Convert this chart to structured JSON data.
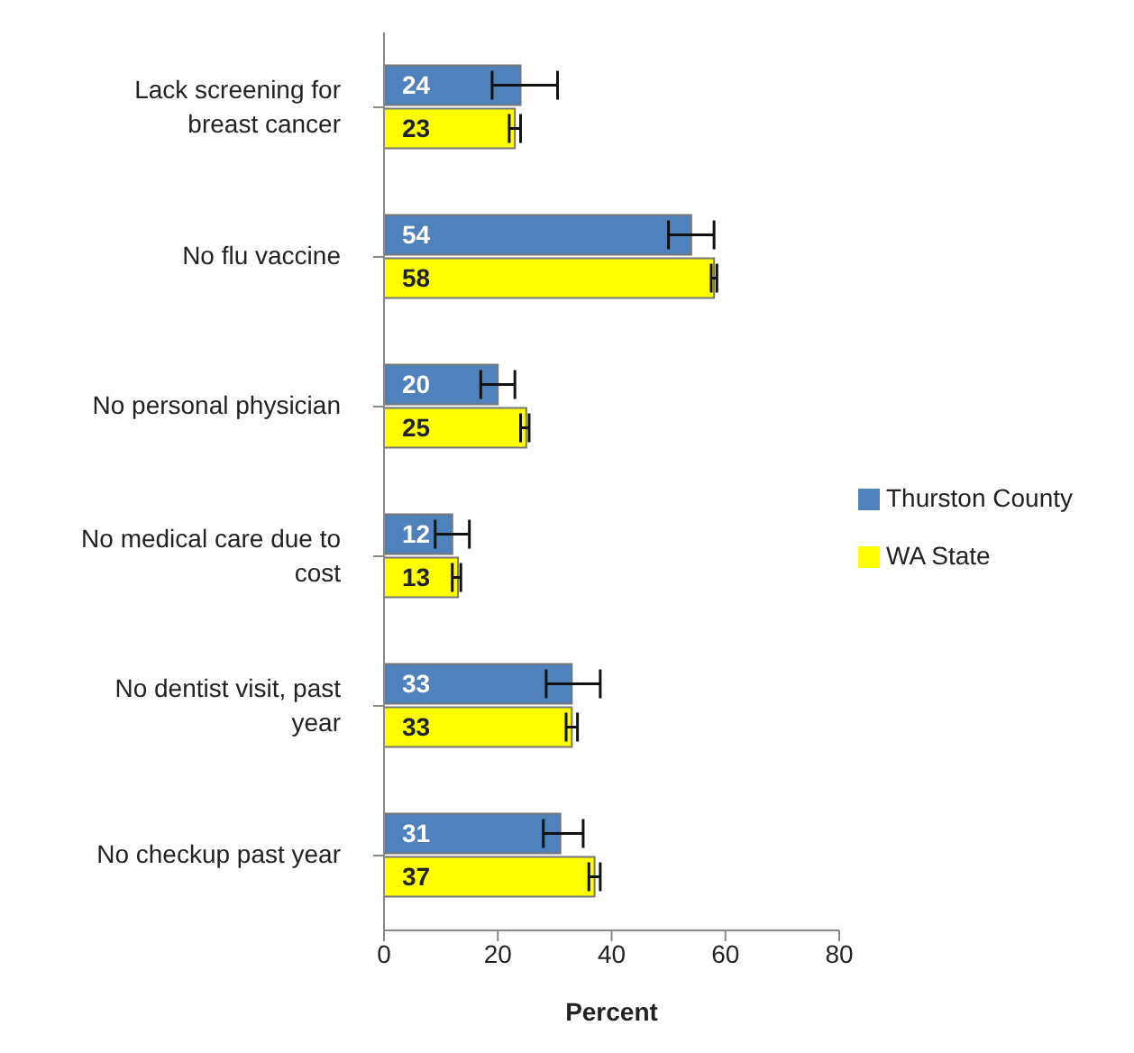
{
  "chart_data": {
    "type": "bar",
    "orientation": "horizontal",
    "xlabel": "Percent",
    "categories": [
      "Lack screening for breast cancer",
      "No flu vaccine",
      "No personal physician",
      "No medical care due to cost",
      "No dentist visit, past year",
      "No checkup past year"
    ],
    "series": [
      {
        "name": "Thurston County",
        "color": "#4f81bd",
        "values": [
          24,
          54,
          20,
          12,
          33,
          31
        ],
        "errors": [
          [
            19,
            30.5
          ],
          [
            50,
            58
          ],
          [
            17,
            23
          ],
          [
            9,
            15
          ],
          [
            28.5,
            38
          ],
          [
            28,
            35
          ]
        ]
      },
      {
        "name": "WA State",
        "color": "#ffff00",
        "values": [
          23,
          58,
          25,
          13,
          33,
          37
        ],
        "errors": [
          [
            22,
            24
          ],
          [
            57.5,
            58.5
          ],
          [
            24,
            25.5
          ],
          [
            12,
            13.5
          ],
          [
            32,
            34
          ],
          [
            36,
            38
          ]
        ]
      }
    ],
    "xlim": [
      0,
      80
    ],
    "xticks": [
      0,
      20,
      40,
      60,
      80
    ],
    "legend": "right",
    "data_labels": true
  }
}
